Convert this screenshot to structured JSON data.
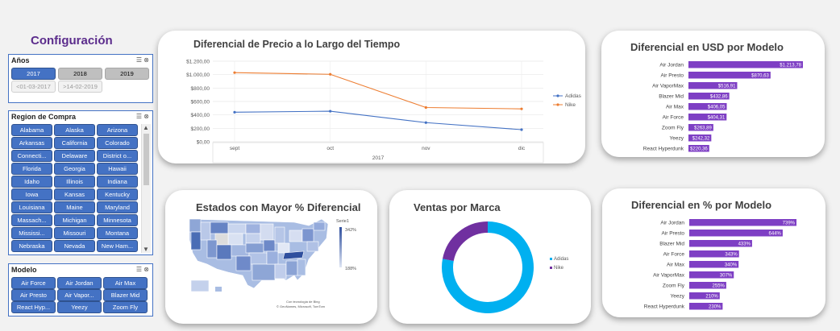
{
  "config_title": "Configuración",
  "anos": {
    "title": "Años",
    "items": [
      "2017",
      "2018",
      "2019"
    ],
    "items2": [
      "<01-03-2017",
      ">14-02-2019"
    ]
  },
  "region": {
    "title": "Region de Compra",
    "items": [
      "Alabama",
      "Alaska",
      "Arizona",
      "Arkansas",
      "California",
      "Colorado",
      "Connecti...",
      "Delaware",
      "District o...",
      "Florida",
      "Georgia",
      "Hawaii",
      "Idaho",
      "Illinois",
      "Indiana",
      "Iowa",
      "Kansas",
      "Kentucky",
      "Louisiana",
      "Maine",
      "Maryland",
      "Massach...",
      "Michigan",
      "Minnesota",
      "Mississi...",
      "Missouri",
      "Montana",
      "Nebraska",
      "Nevada",
      "New Ham..."
    ]
  },
  "modelo": {
    "title": "Modelo",
    "items": [
      "Air Force",
      "Air Jordan",
      "Air Max",
      "Air Presto",
      "Air Vapor...",
      "Blazer Mid",
      "React Hyp...",
      "Yeezy",
      "Zoom Fly"
    ]
  },
  "chart_data": [
    {
      "type": "line",
      "title": "Diferencial de Precio a lo Largo del Tiempo",
      "categories": [
        "sept",
        "oct",
        "nov",
        "dic"
      ],
      "category_group": "2017",
      "yticks": [
        "$0,00",
        "$200,00",
        "$400,00",
        "$600,00",
        "$800,00",
        "$1.000,00",
        "$1.200,00"
      ],
      "ylim": [
        0,
        1200
      ],
      "series": [
        {
          "name": "Adidas",
          "color": "#4472c4",
          "values": [
            440,
            455,
            285,
            180
          ]
        },
        {
          "name": "Nike",
          "color": "#ed7d31",
          "values": [
            1030,
            1005,
            510,
            490
          ]
        }
      ],
      "legend": "right"
    },
    {
      "type": "bar",
      "title": "Diferencial en USD por Modelo",
      "color": "#7e3fc4",
      "categories": [
        "Air Jordan",
        "Air Presto",
        "Air VaporMax",
        "Blazer Mid",
        "Air Max",
        "Air Force",
        "Zoom Fly",
        "Yeezy",
        "React Hyperdunk"
      ],
      "values": [
        1213.78,
        870.63,
        516.91,
        432.86,
        406.05,
        404.31,
        263.89,
        242.32,
        220.36
      ],
      "labels": [
        "$1.213,78",
        "$870,63",
        "$516,91",
        "$432,86",
        "$406,05",
        "$404,31",
        "$263,89",
        "$242,32",
        "$220,36"
      ]
    },
    {
      "type": "heatmap",
      "title": "Estados con Mayor % Diferencial",
      "legend_title": "Serie1",
      "legend_max": "342%",
      "legend_min": "188%",
      "credit1": "Con tecnología de Bing",
      "credit2": "© GeoNames, Microsoft, TomTom"
    },
    {
      "type": "pie",
      "title": "Ventas por Marca",
      "donut": true,
      "series": [
        {
          "name": "Adidas",
          "color": "#00b0f0",
          "value": 78
        },
        {
          "name": "Nike",
          "color": "#7030a0",
          "value": 22
        }
      ]
    },
    {
      "type": "bar",
      "title": "Diferencial en % por Modelo",
      "color": "#7e3fc4",
      "categories": [
        "Air Jordan",
        "Air Presto",
        "Blazer Mid",
        "Air Force",
        "Air Max",
        "Air VaporMax",
        "Zoom Fly",
        "Yeezy",
        "React Hyperdunk"
      ],
      "values": [
        739,
        644,
        433,
        343,
        340,
        307,
        255,
        210,
        230
      ],
      "labels": [
        "739%",
        "644%",
        "433%",
        "343%",
        "340%",
        "307%",
        "255%",
        "210%",
        "230%"
      ]
    }
  ]
}
